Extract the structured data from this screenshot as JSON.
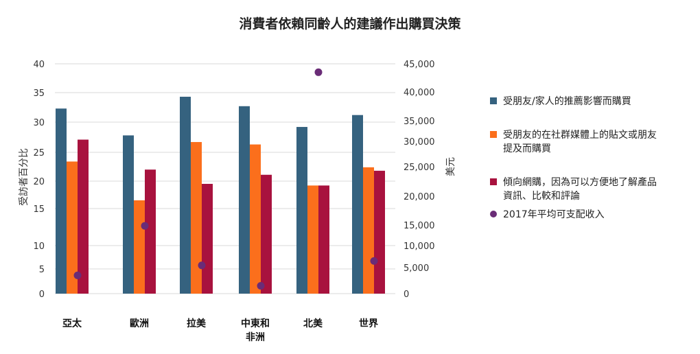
{
  "chart_data": {
    "type": "bar",
    "title": "消費者依賴同齡人的建議作出購買決策",
    "categories": [
      [
        "亞太"
      ],
      [
        "歐洲"
      ],
      [
        "拉美"
      ],
      [
        "中東和",
        "非洲"
      ],
      [
        "北美"
      ],
      [
        "世界"
      ]
    ],
    "series": [
      {
        "name": "受朋友/家人的推薦影響而購買",
        "color": "#35627f",
        "axis": "left",
        "kind": "bar",
        "values": [
          32.3,
          27.8,
          34.3,
          32.7,
          29.2,
          31.2
        ]
      },
      {
        "name": "受朋友的在社群媒體上的貼文或朋友提及而購買",
        "color": "#fb6f1c",
        "axis": "left",
        "kind": "bar",
        "values": [
          23.4,
          16.5,
          26.7,
          26.3,
          19.2,
          22.4
        ]
      },
      {
        "name": "傾向網購，因為可以方便地了解產品資訊、比較和評論",
        "color": "#a8123e",
        "axis": "left",
        "kind": "bar",
        "values": [
          27.1,
          22.0,
          19.5,
          21.1,
          19.2,
          21.8
        ]
      },
      {
        "name": "2017年平均可支配收入",
        "color": "#6a2c77",
        "axis": "right",
        "kind": "dot",
        "values": [
          3500,
          14800,
          5500,
          1500,
          43500,
          6500
        ]
      }
    ],
    "left_axis": {
      "label": "受訪者百分比",
      "ticks": [
        0,
        5,
        10,
        15,
        20,
        25,
        30,
        35,
        40
      ],
      "tick_labels": [
        "0",
        "5",
        "10",
        "15",
        "20",
        "25",
        "30",
        "35",
        "40"
      ]
    },
    "right_axis": {
      "label": "美元",
      "ticks": [
        0,
        5000,
        10000,
        15000,
        20000,
        25000,
        30000,
        35000,
        40000,
        45000
      ],
      "tick_labels": [
        "0",
        "5,000",
        "10,000",
        "15,000",
        "20,000",
        "25,000",
        "30,000",
        "35,000",
        "40,000",
        "45,000"
      ]
    },
    "legend": {
      "placement": "right",
      "items": [
        {
          "lines": [
            "受朋友/家人的推薦影響而購買"
          ],
          "marker": "square",
          "color": "#35627f"
        },
        {
          "lines": [
            "受朋友的在社群媒體上的貼文或朋友",
            "提及而購買"
          ],
          "marker": "square",
          "color": "#fb6f1c"
        },
        {
          "lines": [
            "傾向網購，因為可以方便地了解產品",
            "資訊、比較和評論"
          ],
          "marker": "square",
          "color": "#a8123e"
        },
        {
          "lines": [
            "2017年平均可支配收入"
          ],
          "marker": "circle",
          "color": "#6a2c77"
        }
      ]
    },
    "grid": true
  }
}
